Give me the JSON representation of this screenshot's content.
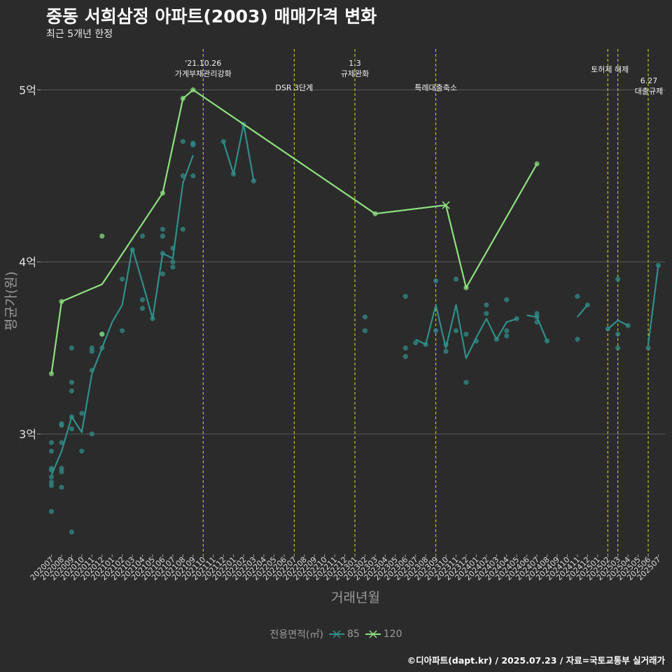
{
  "title": "중동 서희삼정 아파트(2003) 매매가격 변화",
  "subtitle": "최근 5개년 한정",
  "caption": "©디아파트(dapt.kr) / 2025.07.23 / 자료=국토교통부 실거래가",
  "legend_title": "전용면적(㎡)",
  "colors": {
    "s85": "#2f8f8b",
    "s120": "#8ee07f",
    "vline": "#d4dd2a",
    "grid": "#5a5a5a",
    "bg": "#2b2b2b"
  },
  "chart_data": {
    "type": "line",
    "title": "중동 서희삼정 아파트(2003) 매매가격 변화",
    "subtitle": "최근 5개년 한정",
    "xlabel": "거래년월",
    "ylabel": "평균가(원)",
    "ylim": [
      2.3,
      5.27
    ],
    "y_ticks": [
      {
        "v": 3,
        "label": "3억"
      },
      {
        "v": 4,
        "label": "4억"
      },
      {
        "v": 5,
        "label": "5억"
      }
    ],
    "categories": [
      "202007",
      "202008",
      "202009",
      "202010",
      "202011",
      "202012",
      "202101",
      "202102",
      "202103",
      "202104",
      "202105",
      "202106",
      "202107",
      "202108",
      "202109",
      "202110",
      "202111",
      "202112",
      "202201",
      "202202",
      "202203",
      "202204",
      "202205",
      "202206",
      "202207",
      "202208",
      "202209",
      "202210",
      "202211",
      "202212",
      "202301",
      "202302",
      "202303",
      "202304",
      "202305",
      "202306",
      "202307",
      "202308",
      "202309",
      "202310",
      "202311",
      "202312",
      "202401",
      "202402",
      "202403",
      "202404",
      "202405",
      "202406",
      "202407",
      "202408",
      "202409",
      "202410",
      "202411",
      "202412",
      "202501",
      "202502",
      "202503",
      "202504",
      "202505",
      "202506",
      "202507"
    ],
    "series": [
      {
        "name": "85",
        "color": "#2f8f8b",
        "line": [
          [
            0,
            2.76
          ],
          [
            1,
            2.9
          ],
          [
            2,
            3.1
          ],
          [
            3,
            3.01
          ],
          [
            4,
            3.35
          ],
          [
            5,
            3.5
          ],
          [
            6,
            3.65
          ],
          [
            7,
            3.75
          ],
          [
            8,
            4.08
          ],
          [
            9,
            3.88
          ],
          [
            10,
            3.67
          ],
          [
            11,
            4.05
          ],
          [
            12,
            4.02
          ],
          [
            13,
            4.46
          ],
          [
            14,
            4.62
          ],
          [
            null,
            null
          ],
          [
            17,
            4.7
          ],
          [
            18,
            4.51
          ],
          [
            19,
            4.8
          ],
          [
            20,
            4.47
          ],
          [
            null,
            null
          ],
          [
            36,
            3.55
          ],
          [
            37,
            3.52
          ],
          [
            38,
            3.75
          ],
          [
            39,
            3.5
          ],
          [
            40,
            3.75
          ],
          [
            41,
            3.44
          ],
          [
            42,
            3.56
          ],
          [
            43,
            3.67
          ],
          [
            44,
            3.55
          ],
          [
            45,
            3.65
          ],
          [
            46,
            3.67
          ],
          [
            null,
            null
          ],
          [
            47,
            3.69
          ],
          [
            48,
            3.68
          ],
          [
            49,
            3.54
          ],
          [
            null,
            null
          ],
          [
            52,
            3.68
          ],
          [
            53,
            3.75
          ],
          [
            null,
            null
          ],
          [
            55,
            3.61
          ],
          [
            56,
            3.66
          ],
          [
            57,
            3.63
          ],
          [
            null,
            null
          ],
          [
            59,
            3.52
          ],
          [
            60,
            3.98
          ]
        ],
        "points": [
          [
            0,
            2.55
          ],
          [
            0,
            2.7
          ],
          [
            0,
            2.72
          ],
          [
            0,
            2.75
          ],
          [
            0,
            2.79
          ],
          [
            0,
            2.8
          ],
          [
            0,
            2.9
          ],
          [
            0,
            2.95
          ],
          [
            1,
            2.69
          ],
          [
            1,
            2.78
          ],
          [
            1,
            2.8
          ],
          [
            1,
            2.95
          ],
          [
            1,
            3.05
          ],
          [
            1,
            3.06
          ],
          [
            2,
            2.43
          ],
          [
            2,
            3.03
          ],
          [
            2,
            3.1
          ],
          [
            2,
            3.25
          ],
          [
            2,
            3.3
          ],
          [
            2,
            3.5
          ],
          [
            3,
            2.9
          ],
          [
            3,
            3.12
          ],
          [
            4,
            3.0
          ],
          [
            4,
            3.37
          ],
          [
            4,
            3.48
          ],
          [
            4,
            3.5
          ],
          [
            5,
            3.5
          ],
          [
            5,
            3.58
          ],
          [
            7,
            3.6
          ],
          [
            7,
            3.9
          ],
          [
            8,
            4.07
          ],
          [
            9,
            3.73
          ],
          [
            9,
            3.78
          ],
          [
            9,
            4.15
          ],
          [
            10,
            3.67
          ],
          [
            11,
            3.93
          ],
          [
            11,
            4.05
          ],
          [
            11,
            4.15
          ],
          [
            11,
            4.19
          ],
          [
            12,
            3.97
          ],
          [
            12,
            4.0
          ],
          [
            12,
            4.08
          ],
          [
            13,
            4.19
          ],
          [
            13,
            4.5
          ],
          [
            13,
            4.7
          ],
          [
            14,
            4.5
          ],
          [
            14,
            4.68
          ],
          [
            14,
            4.69
          ],
          [
            17,
            4.7
          ],
          [
            18,
            4.51
          ],
          [
            19,
            4.8
          ],
          [
            20,
            4.47
          ],
          [
            31,
            3.6
          ],
          [
            31,
            3.68
          ],
          [
            35,
            3.45
          ],
          [
            35,
            3.5
          ],
          [
            35,
            3.8
          ],
          [
            36,
            3.53
          ],
          [
            37,
            3.52
          ],
          [
            38,
            3.6
          ],
          [
            38,
            3.89
          ],
          [
            39,
            3.48
          ],
          [
            39,
            3.52
          ],
          [
            40,
            3.6
          ],
          [
            40,
            3.9
          ],
          [
            41,
            3.3
          ],
          [
            41,
            3.58
          ],
          [
            42,
            3.54
          ],
          [
            43,
            3.7
          ],
          [
            43,
            3.75
          ],
          [
            44,
            3.55
          ],
          [
            45,
            3.57
          ],
          [
            45,
            3.6
          ],
          [
            45,
            3.78
          ],
          [
            46,
            3.67
          ],
          [
            48,
            3.65
          ],
          [
            48,
            3.68
          ],
          [
            48,
            3.7
          ],
          [
            49,
            3.54
          ],
          [
            52,
            3.55
          ],
          [
            52,
            3.8
          ],
          [
            53,
            3.75
          ],
          [
            55,
            3.61
          ],
          [
            56,
            3.5
          ],
          [
            56,
            3.58
          ],
          [
            56,
            3.9
          ],
          [
            57,
            3.63
          ],
          [
            59,
            3.5
          ],
          [
            60,
            3.98
          ]
        ]
      },
      {
        "name": "120",
        "color": "#8ee07f",
        "line": [
          [
            0,
            3.35
          ],
          [
            1,
            3.77
          ],
          [
            5,
            3.87
          ],
          [
            11,
            4.4
          ],
          [
            13,
            4.95
          ],
          [
            14,
            5.0
          ],
          [
            32,
            4.28
          ],
          [
            39,
            4.33
          ],
          [
            41,
            3.85
          ],
          [
            48,
            4.57
          ]
        ],
        "points": [
          [
            0,
            3.35
          ],
          [
            1,
            3.77
          ],
          [
            5,
            4.15
          ],
          [
            5,
            3.58
          ],
          [
            11,
            4.4
          ],
          [
            13,
            4.95
          ],
          [
            14,
            5.0
          ],
          [
            32,
            4.28
          ],
          [
            41,
            3.85
          ],
          [
            48,
            4.57
          ]
        ],
        "cross_marks": [
          [
            39,
            4.33
          ]
        ]
      }
    ],
    "annotations": [
      {
        "x": 15.0,
        "lines": [
          "'21.10.26",
          "가계부채관리강화"
        ],
        "level": "upper"
      },
      {
        "x": 24.0,
        "lines": [
          "DSR 3단계"
        ],
        "level": "lower"
      },
      {
        "x": 30.0,
        "lines": [
          "1.3",
          "규제완화"
        ],
        "level": "upper"
      },
      {
        "x": 38.0,
        "lines": [
          "특례대출축소"
        ],
        "level": "lower"
      },
      {
        "x": 55.0,
        "lines": [
          "토허제 해제"
        ],
        "level": "upper_single"
      },
      {
        "x": 56.0,
        "lines": [],
        "level": "none"
      },
      {
        "x": 59.0,
        "lines": [
          "6.27",
          "대출규제"
        ],
        "level": "right"
      }
    ],
    "grid": true,
    "legend_position": "bottom"
  }
}
